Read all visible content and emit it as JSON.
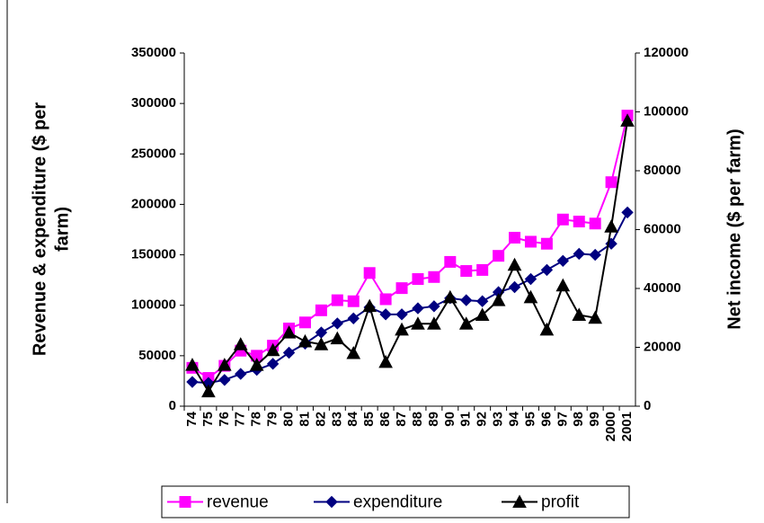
{
  "chart_data": {
    "type": "line",
    "y_label": [
      "Revenue & expenditure ($ per",
      "farm)"
    ],
    "y2_label": "Net income ($ per farm)",
    "categories": [
      "74",
      "75",
      "76",
      "77",
      "78",
      "79",
      "80",
      "81",
      "82",
      "83",
      "84",
      "85",
      "86",
      "87",
      "88",
      "89",
      "90",
      "91",
      "92",
      "93",
      "94",
      "95",
      "96",
      "97",
      "98",
      "99",
      "2000",
      "2001"
    ],
    "series": [
      {
        "name": "revenue",
        "color": "#ff00ff",
        "marker": "square",
        "values": [
          38000,
          28000,
          40000,
          55000,
          50000,
          60000,
          77000,
          83000,
          95000,
          105000,
          104000,
          132000,
          106000,
          117000,
          126000,
          128000,
          143000,
          134000,
          135000,
          149000,
          167000,
          163000,
          161000,
          185000,
          183000,
          181000,
          222000,
          288000
        ]
      },
      {
        "name": "expenditure",
        "color": "#000080",
        "marker": "diamond",
        "values": [
          24000,
          23000,
          26000,
          32000,
          36000,
          42000,
          53000,
          62000,
          73000,
          82000,
          87000,
          98000,
          91000,
          91000,
          97000,
          99000,
          107000,
          105000,
          104000,
          113000,
          118000,
          126000,
          135000,
          144000,
          151000,
          150000,
          161000,
          192000
        ]
      },
      {
        "name": "profit",
        "color": "#000000",
        "marker": "triangle",
        "axis": "y2",
        "values": [
          14000,
          5000,
          14000,
          21000,
          14000,
          19000,
          25000,
          22000,
          21000,
          23000,
          18000,
          34000,
          15000,
          26000,
          28000,
          28000,
          37000,
          28000,
          31000,
          36000,
          48000,
          37000,
          26000,
          41000,
          31000,
          30000,
          61000,
          97000
        ]
      }
    ],
    "ylim": [
      0,
      350000
    ],
    "yticks": [
      0,
      50000,
      100000,
      150000,
      200000,
      250000,
      300000,
      350000
    ],
    "y2lim": [
      0,
      120000
    ],
    "y2ticks": [
      0,
      20000,
      40000,
      60000,
      80000,
      100000,
      120000
    ],
    "legend": "bottom"
  }
}
